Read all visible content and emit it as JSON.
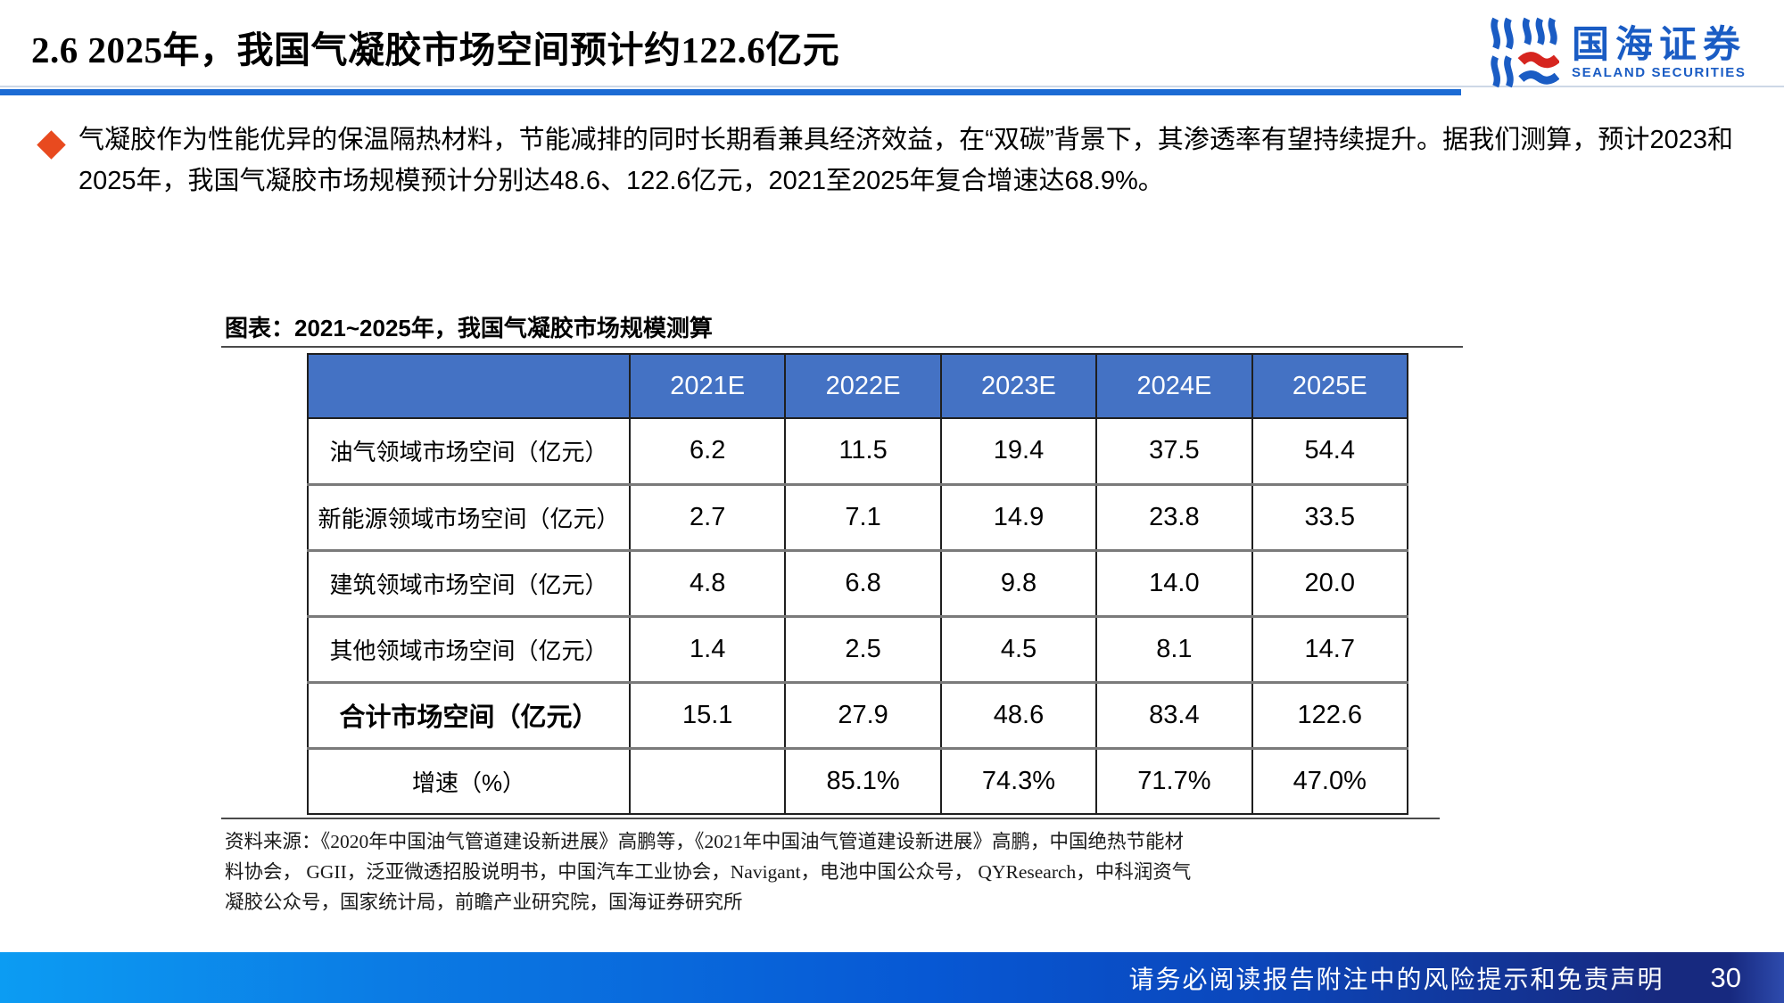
{
  "header": {
    "title": "2.6 2025年，我国气凝胶市场空间预计约122.6亿元",
    "logo_cn": "国海证券",
    "logo_en": "SEALAND SECURITIES"
  },
  "bullet_text": "气凝胶作为性能优异的保温隔热材料，节能减排的同时长期看兼具经济效益，在“双碳”背景下，其渗透率有望持续提升。据我们测算，预计2023和2025年，我国气凝胶市场规模预计分别达48.6、122.6亿元，2021至2025年复合增速达68.9%。",
  "chart_caption": "图表：2021~2025年，我国气凝胶市场规模测算",
  "chart_data": {
    "type": "table",
    "title": "2021~2025年，我国气凝胶市场规模测算",
    "columns": [
      "2021E",
      "2022E",
      "2023E",
      "2024E",
      "2025E"
    ],
    "rows": [
      {
        "label": "油气领域市场空间（亿元）",
        "values": [
          "6.2",
          "11.5",
          "19.4",
          "37.5",
          "54.4"
        ],
        "bold": false
      },
      {
        "label": "新能源领域市场空间（亿元）",
        "values": [
          "2.7",
          "7.1",
          "14.9",
          "23.8",
          "33.5"
        ],
        "bold": false
      },
      {
        "label": "建筑领域市场空间（亿元）",
        "values": [
          "4.8",
          "6.8",
          "9.8",
          "14.0",
          "20.0"
        ],
        "bold": false
      },
      {
        "label": "其他领域市场空间（亿元）",
        "values": [
          "1.4",
          "2.5",
          "4.5",
          "8.1",
          "14.7"
        ],
        "bold": false
      },
      {
        "label": "合计市场空间（亿元）",
        "values": [
          "15.1",
          "27.9",
          "48.6",
          "83.4",
          "122.6"
        ],
        "bold": true
      },
      {
        "label": "增速（%）",
        "values": [
          "",
          "85.1%",
          "74.3%",
          "71.7%",
          "47.0%"
        ],
        "bold": false
      }
    ]
  },
  "source_lines": [
    "资料来源：《2020年中国油气管道建设新进展》高鹏等，《2021年中国油气管道建设新进展》高鹏，中国绝热节能材",
    "料协会， GGII，泛亚微透招股说明书，中国汽车工业协会，Navigant，电池中国公众号， QYResearch，中科润资气",
    "凝胶公众号，国家统计局，前瞻产业研究院，国海证券研究所"
  ],
  "footer": {
    "disclaimer": "请务必阅读报告附注中的风险提示和免责声明",
    "page": "30"
  },
  "colors": {
    "table_header_blue": "#4472C4",
    "title_rule_blue": "#1C6BD4",
    "bullet_diamond_orange": "#E84A1F",
    "logo_blue": "#1A5CC4",
    "logo_red": "#D6251F",
    "footer_gradient_left": "#0C9CF3",
    "footer_gradient_right": "#17297F"
  }
}
